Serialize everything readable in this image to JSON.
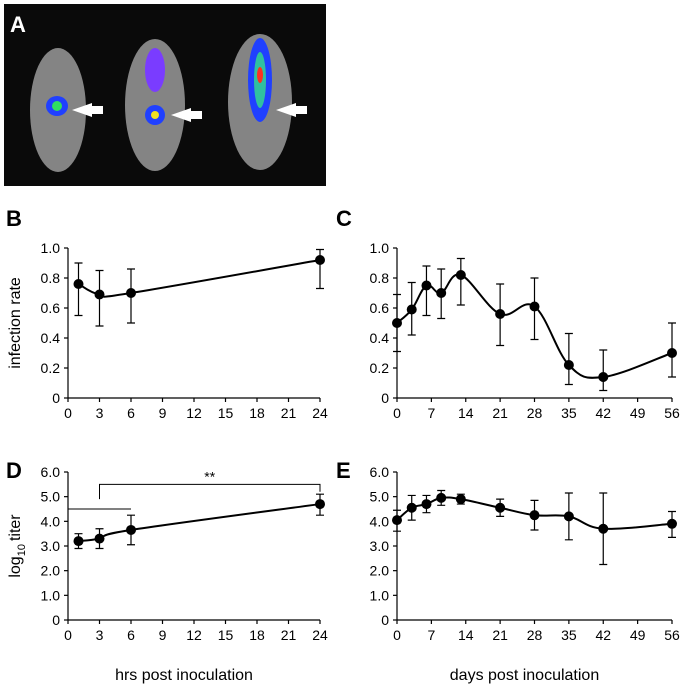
{
  "panel_a": {
    "label": "A"
  },
  "chart_data": [
    {
      "type": "line",
      "panel": "B",
      "ylabel": "infection rate",
      "x": [
        1,
        3,
        6,
        24
      ],
      "xlim": [
        0,
        24
      ],
      "xticks": [
        0,
        3,
        6,
        9,
        12,
        15,
        18,
        21,
        24
      ],
      "ylim": [
        0,
        1
      ],
      "yticks": [
        0,
        0.2,
        0.4,
        0.6,
        0.8,
        {
          "value": 1,
          "label": "1.0"
        }
      ],
      "series": [
        {
          "color": "#000000",
          "values": [
            0.76,
            0.69,
            0.7,
            0.92
          ],
          "err_lower": [
            0.55,
            0.48,
            0.5,
            0.73
          ],
          "err_upper": [
            0.9,
            0.85,
            0.86,
            0.99
          ]
        }
      ]
    },
    {
      "type": "line",
      "panel": "C",
      "x": [
        0,
        3,
        6,
        9,
        13,
        21,
        28,
        35,
        42,
        56
      ],
      "xlim": [
        0,
        56
      ],
      "xticks": [
        0,
        7,
        14,
        21,
        28,
        35,
        42,
        49,
        56
      ],
      "ylim": [
        0,
        1
      ],
      "yticks": [
        0,
        0.2,
        0.4,
        0.6,
        0.8,
        {
          "value": 1,
          "label": "1.0"
        }
      ],
      "series": [
        {
          "color": "#000000",
          "values": [
            0.5,
            0.59,
            0.75,
            0.7,
            0.82,
            0.56,
            0.61,
            0.22,
            0.14,
            0.3
          ],
          "err_lower": [
            0.31,
            0.42,
            0.55,
            0.53,
            0.62,
            0.35,
            0.39,
            0.09,
            0.05,
            0.14
          ],
          "err_upper": [
            0.69,
            0.77,
            0.88,
            0.86,
            0.93,
            0.76,
            0.8,
            0.43,
            0.32,
            0.5
          ]
        }
      ]
    },
    {
      "type": "line",
      "panel": "D",
      "ylabel": [
        "log",
        "10",
        "titer"
      ],
      "xlabel": "hrs post inoculation",
      "annotation": "**",
      "x": [
        1,
        3,
        6,
        24
      ],
      "xlim": [
        0,
        24
      ],
      "xticks": [
        0,
        3,
        6,
        9,
        12,
        15,
        18,
        21,
        24
      ],
      "ylim": [
        0,
        6
      ],
      "yticks": [
        0,
        {
          "value": 1,
          "label": "1.0"
        },
        {
          "value": 2,
          "label": "2.0"
        },
        {
          "value": 3,
          "label": "3.0"
        },
        {
          "value": 4,
          "label": "4.0"
        },
        {
          "value": 5,
          "label": "5.0"
        },
        {
          "value": 6,
          "label": "6.0"
        }
      ],
      "series": [
        {
          "color": "#000000",
          "values": [
            3.2,
            3.3,
            3.65,
            4.7
          ],
          "err_lower": [
            2.9,
            2.9,
            3.05,
            4.25
          ],
          "err_upper": [
            3.5,
            3.7,
            4.25,
            5.1
          ]
        }
      ]
    },
    {
      "type": "line",
      "panel": "E",
      "xlabel": "days post inoculation",
      "x": [
        0,
        3,
        6,
        9,
        13,
        21,
        28,
        35,
        42,
        56
      ],
      "xlim": [
        0,
        56
      ],
      "xticks": [
        0,
        7,
        14,
        21,
        28,
        35,
        42,
        49,
        56
      ],
      "ylim": [
        0,
        6
      ],
      "yticks": [
        0,
        {
          "value": 1,
          "label": "1.0"
        },
        {
          "value": 2,
          "label": "2.0"
        },
        {
          "value": 3,
          "label": "3.0"
        },
        {
          "value": 4,
          "label": "4.0"
        },
        {
          "value": 5,
          "label": "5.0"
        },
        {
          "value": 6,
          "label": "6.0"
        }
      ],
      "series": [
        {
          "color": "#000000",
          "values": [
            4.05,
            4.55,
            4.7,
            4.95,
            4.9,
            4.55,
            4.25,
            4.2,
            3.7,
            3.9
          ],
          "err_lower": [
            3.6,
            4.05,
            4.35,
            4.65,
            4.7,
            4.2,
            3.65,
            3.25,
            2.25,
            3.35
          ],
          "err_upper": [
            4.45,
            5.05,
            5.05,
            5.25,
            5.1,
            4.9,
            4.85,
            5.15,
            5.15,
            4.4
          ]
        }
      ]
    }
  ]
}
